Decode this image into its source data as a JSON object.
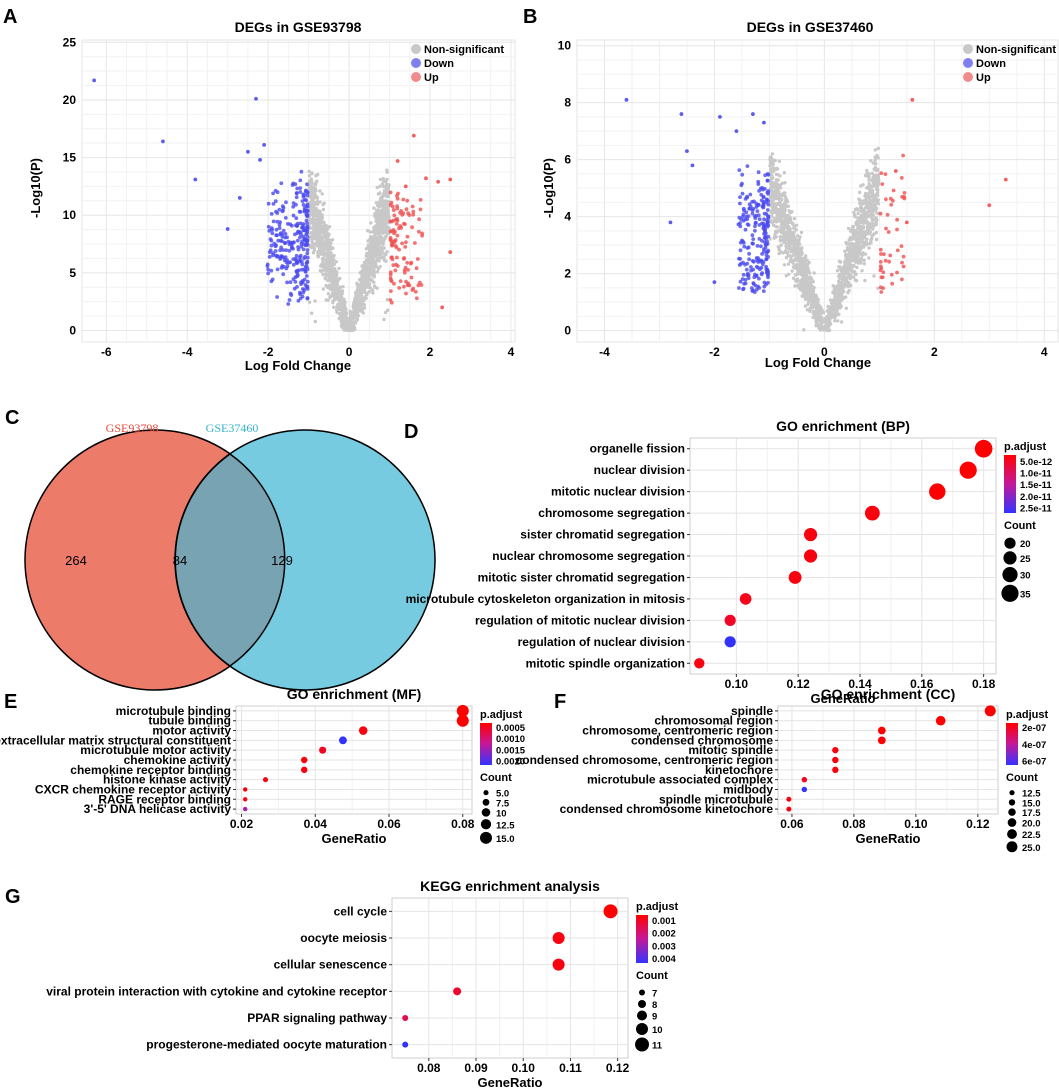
{
  "panels": {
    "A": "A",
    "B": "B",
    "C": "C",
    "D": "D",
    "E": "E",
    "F": "F",
    "G": "G"
  },
  "colors": {
    "down": "#1f1fe6",
    "up": "#ee2a2a",
    "ns": "#c8c8c8",
    "vennLeft": "#ed7b6a",
    "vennRight": "#76cbe0",
    "vennOverlap": "#78a3b3",
    "gse1": "#e8473a",
    "gse2": "#37b3cf",
    "gradHigh": "#ff0000",
    "gradLow": "#3333ff"
  },
  "chart_data": [
    {
      "id": "A",
      "type": "scatter",
      "title": "DEGs in GSE93798",
      "xlabel": "Log Fold Change",
      "ylabel": "-Log10(P)",
      "xlim": [
        -6.6,
        4.1
      ],
      "ylim": [
        -1,
        25.2
      ],
      "xticks": [
        -6,
        -4,
        -2,
        0,
        2,
        4
      ],
      "yticks": [
        0,
        5,
        10,
        15,
        20,
        25
      ],
      "legend": [
        "Non-significant",
        "Down",
        "Up"
      ],
      "groups_described": "Non-significant: |LFC|<1 (grey V shape); Down: LFC<-1 (blue); Up: LFC>1 (red)",
      "points": [
        {
          "x": -6.3,
          "y": 21.7,
          "g": "Down"
        },
        {
          "x": -4.6,
          "y": 16.4,
          "g": "Down"
        },
        {
          "x": -3.8,
          "y": 13.1,
          "g": "Down"
        },
        {
          "x": -2.3,
          "y": 20.1,
          "g": "Down"
        },
        {
          "x": -3.0,
          "y": 8.8,
          "g": "Down"
        },
        {
          "x": -2.5,
          "y": 15.5,
          "g": "Down"
        },
        {
          "x": -2.1,
          "y": 16.1,
          "g": "Down"
        },
        {
          "x": -2.2,
          "y": 14.8,
          "g": "Down"
        },
        {
          "x": -2.7,
          "y": 11.5,
          "g": "Down"
        },
        {
          "x": 1.6,
          "y": 16.9,
          "g": "Up"
        },
        {
          "x": 1.2,
          "y": 14.7,
          "g": "Up"
        },
        {
          "x": 1.9,
          "y": 13.2,
          "g": "Up"
        },
        {
          "x": 2.5,
          "y": 13.1,
          "g": "Up"
        },
        {
          "x": 2.2,
          "y": 12.9,
          "g": "Up"
        },
        {
          "x": 2.5,
          "y": 6.8,
          "g": "Up"
        },
        {
          "x": 2.3,
          "y": 2.0,
          "g": "Up"
        },
        {
          "x": 1.4,
          "y": 12.5,
          "g": "Up"
        }
      ]
    },
    {
      "id": "B",
      "type": "scatter",
      "title": "DEGs in GSE37460",
      "xlabel": "Log Fold Change",
      "ylabel": "-Log10(P)",
      "xlim": [
        -4.5,
        4.25
      ],
      "ylim": [
        -0.4,
        10.2
      ],
      "xticks": [
        -4,
        -2,
        0,
        2,
        4
      ],
      "yticks": [
        0,
        2,
        4,
        6,
        8,
        10
      ],
      "legend": [
        "Non-significant",
        "Down",
        "Up"
      ],
      "groups_described": "Non-significant: |LFC|<1 (grey V shape); Down: LFC<-1 (blue); Up: LFC>1 (red)",
      "points": [
        {
          "x": -3.6,
          "y": 8.1,
          "g": "Down"
        },
        {
          "x": -2.6,
          "y": 7.6,
          "g": "Down"
        },
        {
          "x": -1.9,
          "y": 7.5,
          "g": "Down"
        },
        {
          "x": -1.3,
          "y": 7.6,
          "g": "Down"
        },
        {
          "x": -1.6,
          "y": 7.0,
          "g": "Down"
        },
        {
          "x": -2.5,
          "y": 6.3,
          "g": "Down"
        },
        {
          "x": -2.4,
          "y": 5.8,
          "g": "Down"
        },
        {
          "x": -2.8,
          "y": 3.8,
          "g": "Down"
        },
        {
          "x": -1.1,
          "y": 7.3,
          "g": "Down"
        },
        {
          "x": -2.0,
          "y": 1.7,
          "g": "Down"
        },
        {
          "x": 1.6,
          "y": 8.1,
          "g": "Up"
        },
        {
          "x": 3.3,
          "y": 5.3,
          "g": "Up"
        },
        {
          "x": 3.0,
          "y": 4.4,
          "g": "Up"
        },
        {
          "x": 1.3,
          "y": 5.6,
          "g": "Up"
        },
        {
          "x": 1.5,
          "y": 3.8,
          "g": "Up"
        }
      ]
    },
    {
      "id": "C",
      "type": "venn",
      "sets": [
        {
          "name": "GSE93798",
          "only": "264"
        },
        {
          "name": "GSE37460",
          "only": "129"
        }
      ],
      "intersection": "84"
    },
    {
      "id": "D",
      "type": "scatter",
      "title": "GO enrichment (BP)",
      "xlabel": "GeneRatio",
      "xlim": [
        0.085,
        0.184
      ],
      "xticks": [
        0.1,
        0.12,
        0.14,
        0.16,
        0.18
      ],
      "categories": [
        "organelle fission",
        "nuclear division",
        "mitotic nuclear division",
        "chromosome segregation",
        "sister chromatid segregation",
        "nuclear chromosome segregation",
        "mitotic sister chromatid segregation",
        "microtubule cytoskeleton organization in mitosis",
        "regulation of mitotic nuclear division",
        "regulation of nuclear division",
        "mitotic spindle organization"
      ],
      "gene_ratio": [
        0.18,
        0.175,
        0.165,
        0.144,
        0.124,
        0.124,
        0.119,
        0.103,
        0.098,
        0.098,
        0.088
      ],
      "count": [
        36,
        35,
        33,
        29,
        25,
        25,
        24,
        21,
        20,
        20,
        18
      ],
      "p_adjust_rel": [
        0.0,
        0.0,
        0.0,
        0.05,
        0.05,
        0.05,
        0.05,
        0.08,
        0.12,
        1.0,
        0.05
      ],
      "color_legend": {
        "title": "p.adjust",
        "labels": [
          "5.0e-12",
          "1.0e-11",
          "1.5e-11",
          "2.0e-11",
          "2.5e-11"
        ]
      },
      "size_legend": {
        "title": "Count",
        "labels": [
          "20",
          "25",
          "30",
          "35"
        ],
        "values": [
          20,
          25,
          30,
          35
        ]
      },
      "size_range": [
        17,
        37
      ]
    },
    {
      "id": "E",
      "type": "scatter",
      "title": "GO enrichment (MF)",
      "xlabel": "GeneRatio",
      "xlim": [
        0.0185,
        0.0825
      ],
      "xticks": [
        0.02,
        0.04,
        0.06,
        0.08
      ],
      "categories": [
        "microtubule binding",
        "tubule binding",
        "motor activity",
        "extracellular matrix structural constituent",
        "microtubule motor activity",
        "chemokine activity",
        "chemokine receptor binding",
        "histone kinase activity",
        "CXCR chemokine receptor activity",
        "RAGE receptor binding",
        "3'-5' DNA helicase activity"
      ],
      "gene_ratio": [
        0.08,
        0.08,
        0.053,
        0.0475,
        0.042,
        0.037,
        0.037,
        0.0265,
        0.021,
        0.021,
        0.021
      ],
      "count": [
        15,
        15,
        10,
        9,
        8,
        7,
        7,
        5,
        4,
        4,
        4
      ],
      "p_adjust_rel": [
        0.0,
        0.0,
        0.05,
        1.0,
        0.1,
        0.05,
        0.05,
        0.05,
        0.05,
        0.05,
        0.6
      ],
      "color_legend": {
        "title": "p.adjust",
        "labels": [
          "0.0005",
          "0.0010",
          "0.0015",
          "0.0020"
        ]
      },
      "size_legend": {
        "title": "Count",
        "labels": [
          "5.0",
          "7.5",
          "10",
          "12.5",
          "15.0"
        ],
        "values": [
          5,
          7.5,
          10,
          12.5,
          15
        ]
      },
      "size_range": [
        4,
        15
      ]
    },
    {
      "id": "F",
      "type": "scatter",
      "title": "GO enrichment (CC)",
      "xlabel": "GeneRatio",
      "xlim": [
        0.0555,
        0.1265
      ],
      "xticks": [
        0.06,
        0.08,
        0.1,
        0.12
      ],
      "categories": [
        "spindle",
        "chromosomal region",
        "chromosome, centromeric region",
        "condensed chromosome",
        "mitotic spindle",
        "condensed chromosome, centromeric region",
        "kinetochore",
        "microtubule associated complex",
        "midbody",
        "spindle microtubule",
        "condensed chromosome kinetochore"
      ],
      "gene_ratio": [
        0.124,
        0.108,
        0.089,
        0.089,
        0.074,
        0.074,
        0.074,
        0.064,
        0.064,
        0.059,
        0.059
      ],
      "count": [
        25,
        22,
        18,
        18,
        15,
        15,
        15,
        13,
        13,
        12,
        12
      ],
      "p_adjust_rel": [
        0.0,
        0.0,
        0.0,
        0.0,
        0.05,
        0.05,
        0.05,
        0.1,
        1.0,
        0.05,
        0.05
      ],
      "color_legend": {
        "title": "p.adjust",
        "labels": [
          "2e-07",
          "4e-07",
          "6e-07"
        ]
      },
      "size_legend": {
        "title": "Count",
        "labels": [
          "12.5",
          "15.0",
          "17.5",
          "20.0",
          "22.5",
          "25.0"
        ],
        "values": [
          12.5,
          15,
          17.5,
          20,
          22.5,
          25
        ]
      },
      "size_range": [
        12,
        25
      ]
    },
    {
      "id": "G",
      "type": "scatter",
      "title": "KEGG enrichment analysis",
      "xlabel": "GeneRatio",
      "xlim": [
        0.0722,
        0.1222
      ],
      "xticks": [
        0.08,
        0.09,
        0.1,
        0.11,
        0.12
      ],
      "categories": [
        "cell cycle",
        "oocyte meiosis",
        "cellular senescence",
        "viral protein interaction with cytokine and cytokine receptor",
        "PPAR signaling pathway",
        "progesterone-mediated oocyte maturation"
      ],
      "gene_ratio": [
        0.1185,
        0.1075,
        0.1075,
        0.086,
        0.075,
        0.075
      ],
      "count": [
        11,
        10,
        10,
        8,
        7,
        7
      ],
      "p_adjust_rel": [
        0.0,
        0.05,
        0.05,
        0.15,
        0.25,
        1.0
      ],
      "color_legend": {
        "title": "p.adjust",
        "labels": [
          "0.001",
          "0.002",
          "0.003",
          "0.004"
        ]
      },
      "size_legend": {
        "title": "Count",
        "labels": [
          "7",
          "8",
          "9",
          "10",
          "11"
        ],
        "values": [
          7,
          8,
          9,
          10,
          11
        ]
      },
      "size_range": [
        7,
        11
      ]
    }
  ]
}
